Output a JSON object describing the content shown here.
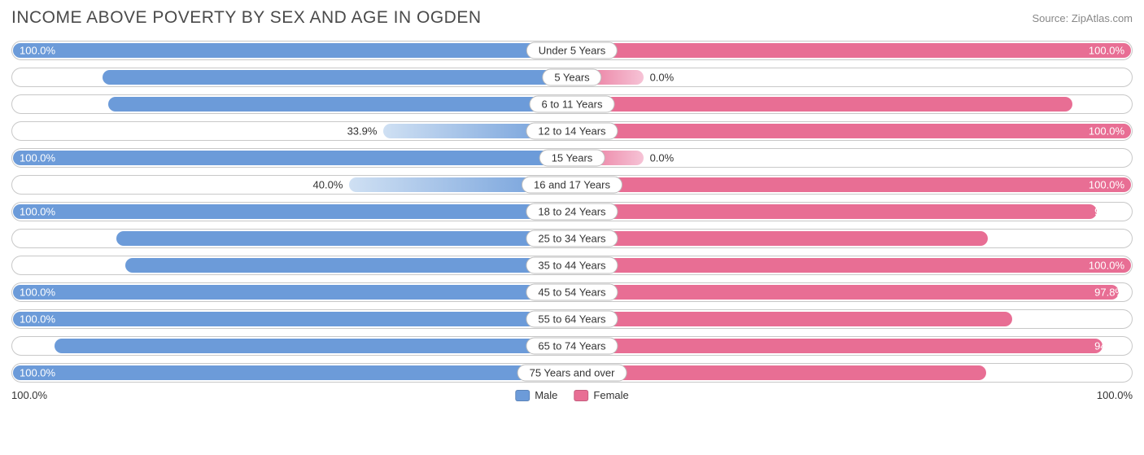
{
  "title": "INCOME ABOVE POVERTY BY SEX AND AGE IN OGDEN",
  "source": "Source: ZipAtlas.com",
  "colors": {
    "male_solid": "#6c9bd9",
    "female_solid": "#e86e94",
    "male_grad_start": "#cfe0f3",
    "male_grad_end": "#6c9bd9",
    "female_grad_start": "#f6c3d6",
    "female_grad_end": "#e86e94",
    "track_border": "#c8c8c8",
    "text_dark": "#333333",
    "text_light": "#ffffff"
  },
  "axis": {
    "left_label": "100.0%",
    "right_label": "100.0%"
  },
  "legend": {
    "male": "Male",
    "female": "Female"
  },
  "label_inside_threshold": 55,
  "rows": [
    {
      "category": "Under 5 Years",
      "male": 100.0,
      "female": 100.0,
      "male_label": "100.0%",
      "female_label": "100.0%"
    },
    {
      "category": "5 Years",
      "male": 84.0,
      "female": 0.0,
      "male_label": "84.0%",
      "female_label": "0.0%",
      "female_stub": 13
    },
    {
      "category": "6 to 11 Years",
      "male": 83.0,
      "female": 89.6,
      "male_label": "83.0%",
      "female_label": "89.6%"
    },
    {
      "category": "12 to 14 Years",
      "male": 33.9,
      "female": 100.0,
      "male_label": "33.9%",
      "female_label": "100.0%",
      "male_gradient": true
    },
    {
      "category": "15 Years",
      "male": 100.0,
      "female": 0.0,
      "male_label": "100.0%",
      "female_label": "0.0%",
      "female_stub": 13
    },
    {
      "category": "16 and 17 Years",
      "male": 40.0,
      "female": 100.0,
      "male_label": "40.0%",
      "female_label": "100.0%",
      "male_gradient": true
    },
    {
      "category": "18 to 24 Years",
      "male": 100.0,
      "female": 93.9,
      "male_label": "100.0%",
      "female_label": "93.9%"
    },
    {
      "category": "25 to 34 Years",
      "male": 81.6,
      "female": 74.5,
      "male_label": "81.6%",
      "female_label": "74.5%"
    },
    {
      "category": "35 to 44 Years",
      "male": 80.0,
      "female": 100.0,
      "male_label": "80.0%",
      "female_label": "100.0%"
    },
    {
      "category": "45 to 54 Years",
      "male": 100.0,
      "female": 97.8,
      "male_label": "100.0%",
      "female_label": "97.8%"
    },
    {
      "category": "55 to 64 Years",
      "male": 100.0,
      "female": 78.8,
      "male_label": "100.0%",
      "female_label": "78.8%"
    },
    {
      "category": "65 to 74 Years",
      "male": 92.6,
      "female": 94.9,
      "male_label": "92.6%",
      "female_label": "94.9%"
    },
    {
      "category": "75 Years and over",
      "male": 100.0,
      "female": 74.2,
      "male_label": "100.0%",
      "female_label": "74.2%"
    }
  ]
}
